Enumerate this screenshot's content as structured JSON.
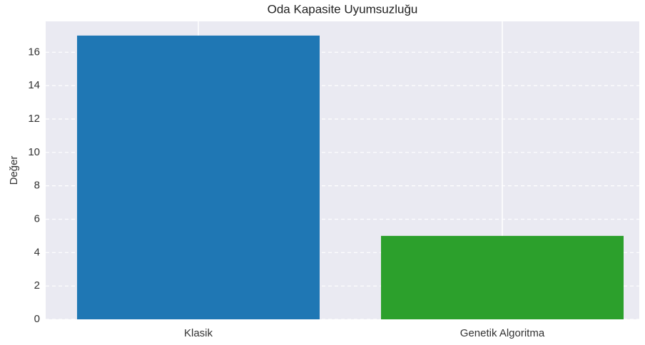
{
  "chart_data": {
    "type": "bar",
    "title": "Oda Kapasite Uyumsuzluğu",
    "y_label": "Değer",
    "categories": [
      "Klasik",
      "Genetik Algoritma"
    ],
    "values": [
      17,
      5
    ],
    "colors": [
      "#1f77b4",
      "#2ca02c"
    ],
    "ylim": [
      0,
      17.85
    ],
    "yticks": [
      0,
      2,
      4,
      6,
      8,
      10,
      12,
      14,
      16
    ],
    "grid": true
  }
}
